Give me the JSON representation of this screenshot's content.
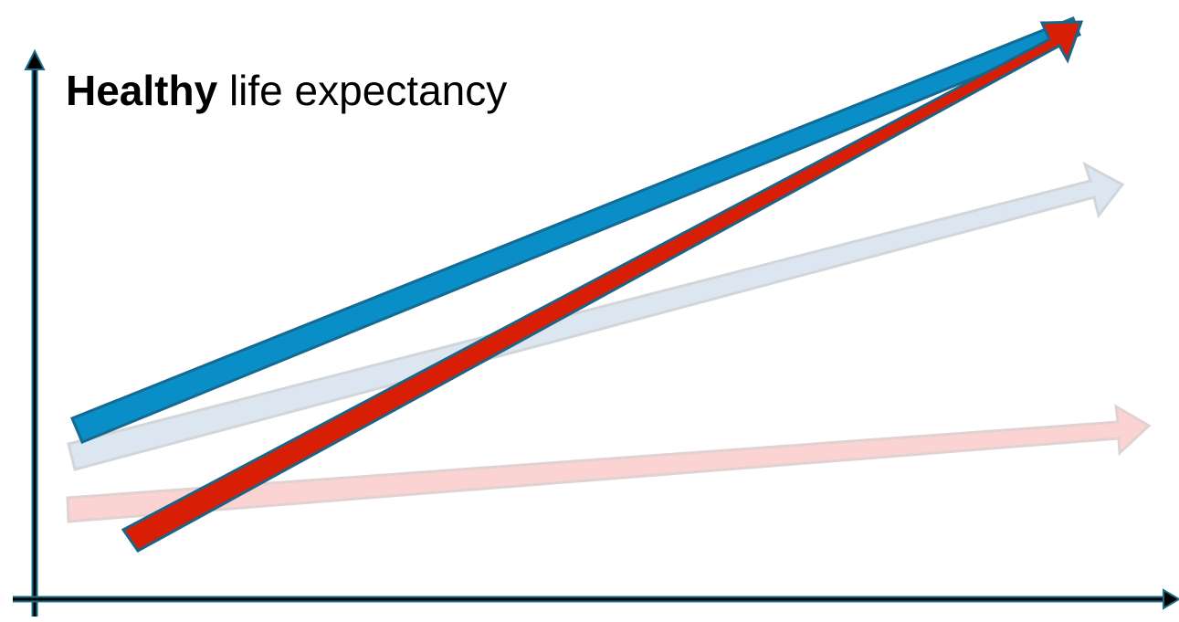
{
  "title": {
    "bold": "Healthy",
    "rest": " life expectancy"
  },
  "colors": {
    "axis": "#000000",
    "axis_outline": "#1a6c8c",
    "blue": "#0a8ec8",
    "blue_outline": "#156a93",
    "red": "#d91e06",
    "red_outline": "#1b6485",
    "faded_blue": "#dce6f0",
    "faded_blue_outline": "#d3d6d9",
    "faded_red": "#fbd3d3",
    "faded_red_outline": "#e1d2d2"
  }
}
